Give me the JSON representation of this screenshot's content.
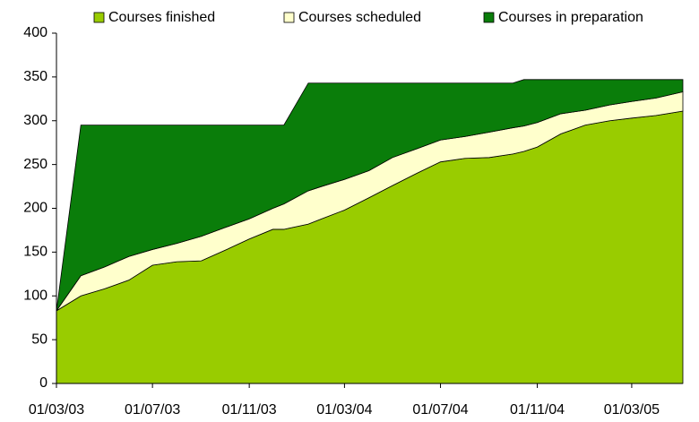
{
  "chart_data": {
    "type": "stacked_area",
    "x": [
      "01/03/03",
      "01/04/03",
      "01/05/03",
      "01/06/03",
      "01/07/03",
      "01/08/03",
      "01/09/03",
      "01/10/03",
      "01/11/03",
      "01/12/03",
      "15/12/03",
      "15/01/04",
      "01/02/04",
      "01/03/04",
      "01/04/04",
      "01/05/04",
      "01/06/04",
      "01/07/04",
      "01/08/04",
      "01/09/04",
      "01/10/04",
      "15/10/04",
      "01/11/04",
      "01/12/04",
      "01/01/05",
      "01/02/05",
      "01/03/05",
      "01/04/05",
      "05/05/05"
    ],
    "series": [
      {
        "name": "Courses finished",
        "color": "#99cc00",
        "values": [
          83,
          100,
          108,
          118,
          135,
          139,
          140,
          152,
          165,
          176,
          176,
          182,
          188,
          198,
          212,
          226,
          240,
          253,
          257,
          258,
          262,
          265,
          270,
          285,
          295,
          300,
          303,
          306,
          311
        ]
      },
      {
        "name": "Courses scheduled",
        "color": "#ffffcc",
        "values": [
          0,
          23,
          25,
          27,
          18,
          21,
          28,
          26,
          23,
          24,
          29,
          38,
          37,
          35,
          31,
          32,
          28,
          25,
          25,
          29,
          30,
          29,
          28,
          23,
          17,
          18,
          19,
          20,
          22
        ]
      },
      {
        "name": "Courses in preparation",
        "color": "#0a7d0a",
        "values": [
          0,
          172,
          162,
          150,
          142,
          135,
          127,
          117,
          107,
          95,
          90,
          123,
          118,
          110,
          100,
          85,
          75,
          65,
          61,
          56,
          51,
          53,
          49,
          39,
          35,
          29,
          25,
          21,
          14
        ]
      }
    ],
    "xlim": [
      "01/03/03",
      "05/05/05"
    ],
    "xticks": [
      "01/03/03",
      "01/07/03",
      "01/11/03",
      "01/03/04",
      "01/07/04",
      "01/11/04",
      "01/03/05"
    ],
    "ylim": [
      0,
      400
    ],
    "yticks": [
      0,
      50,
      100,
      150,
      200,
      250,
      300,
      350,
      400
    ],
    "grid": false,
    "legend": "top"
  }
}
